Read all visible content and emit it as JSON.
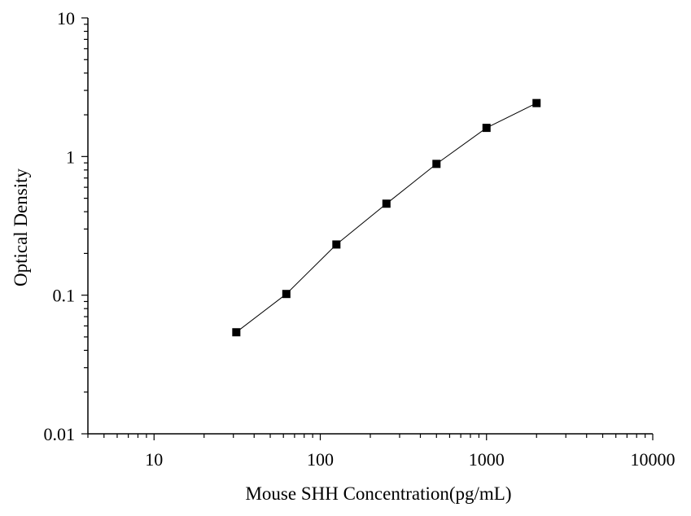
{
  "chart_data": {
    "type": "scatter",
    "title": "",
    "xlabel": "Mouse SHH Concentration(pg/mL)",
    "ylabel": "Optical Density",
    "x_scale": "log",
    "y_scale": "log",
    "xlim": [
      4,
      10000
    ],
    "ylim": [
      0.01,
      10
    ],
    "x_ticks": [
      10,
      100,
      1000,
      10000
    ],
    "x_tick_labels": [
      "10",
      "100",
      "1000",
      "10000"
    ],
    "y_ticks": [
      0.01,
      0.1,
      1,
      10
    ],
    "y_tick_labels": [
      "0.01",
      "0.1",
      "1",
      "10"
    ],
    "grid": false,
    "legend": "none",
    "fit_line": true,
    "series": [
      {
        "x": [
          31.25,
          62.5,
          125,
          250,
          500,
          1000,
          2000
        ],
        "y": [
          0.054,
          0.102,
          0.232,
          0.457,
          0.885,
          1.61,
          2.43
        ]
      }
    ],
    "colors": {
      "marker": "#000000",
      "line": "#000000",
      "axis": "#000000"
    }
  }
}
